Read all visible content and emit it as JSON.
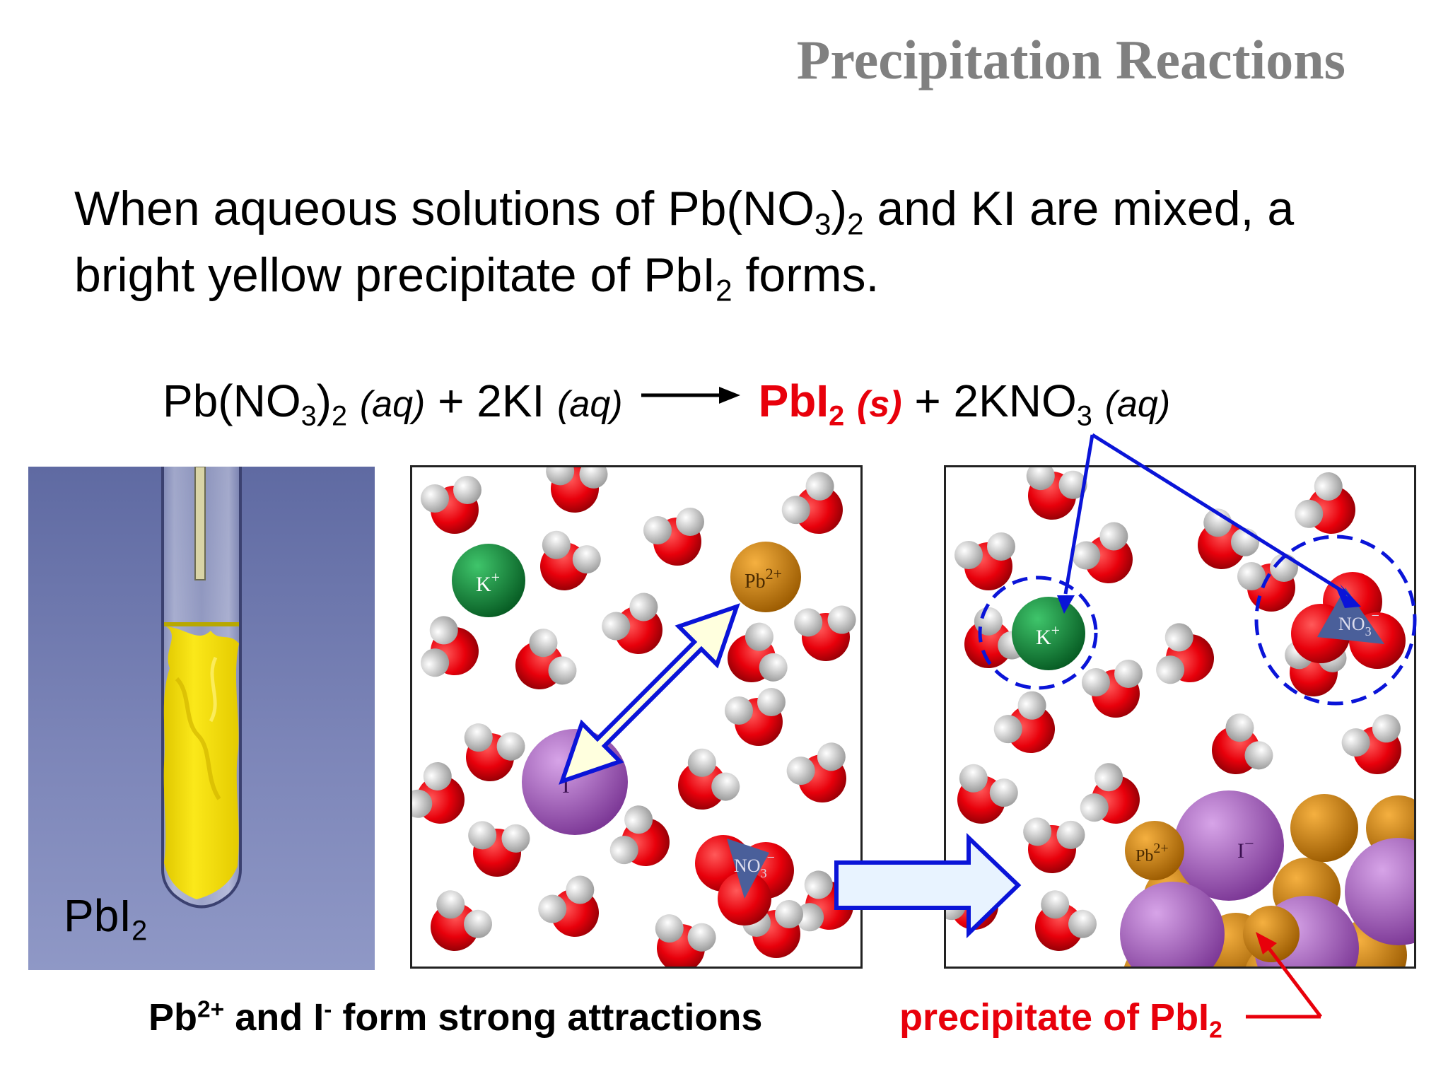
{
  "slide": {
    "title": "Precipitation Reactions",
    "intro": {
      "line1_a": "When aqueous solutions of Pb(NO",
      "line1_sub1": "3",
      "line1_b": ")",
      "line1_sub2": "2",
      "line1_c": " and KI are mixed, a",
      "line2_a": "bright yellow precipitate of PbI",
      "line2_sub": "2",
      "line2_b": " forms."
    },
    "equation": {
      "r1_a": "Pb(NO",
      "r1_sub1": "3",
      "r1_b": ")",
      "r1_sub2": "2",
      "r1_state": "(aq)",
      "plus1": "+",
      "r2": "2KI",
      "r2_state": "(aq)",
      "p1": "PbI",
      "p1_sub": "2",
      "p1_state": "(s)",
      "plus2": "+",
      "p2_a": "2KNO",
      "p2_sub": "3",
      "p2_state": "(aq)"
    },
    "photo": {
      "label": "PbI",
      "label_sub": "2"
    },
    "ions": {
      "k": "K",
      "k_charge": "+",
      "pb": "Pb",
      "pb_charge": "2+",
      "i": "I",
      "i_charge": "−",
      "no3": "NO",
      "no3_sub": "3",
      "no3_charge": "−"
    },
    "captions": {
      "left_a": "Pb",
      "left_sup1": "2+",
      "left_b": " and I",
      "left_sup2": "-",
      "left_c": " form strong attractions",
      "right_a": "precipitate of PbI",
      "right_sub": "2"
    },
    "colors": {
      "title_gray": "#808080",
      "product_red": "#e8000b",
      "arrow_blue": "#0a14d8",
      "water_oxygen": "#e8000b",
      "water_hydrogen": "#d8d8d8",
      "potassium": "#0c8a3a",
      "lead": "#d88910",
      "iodide": "#a24fc0",
      "nitrate": "#4a5f9a",
      "precipitate_yellow": "#f7e100"
    }
  }
}
